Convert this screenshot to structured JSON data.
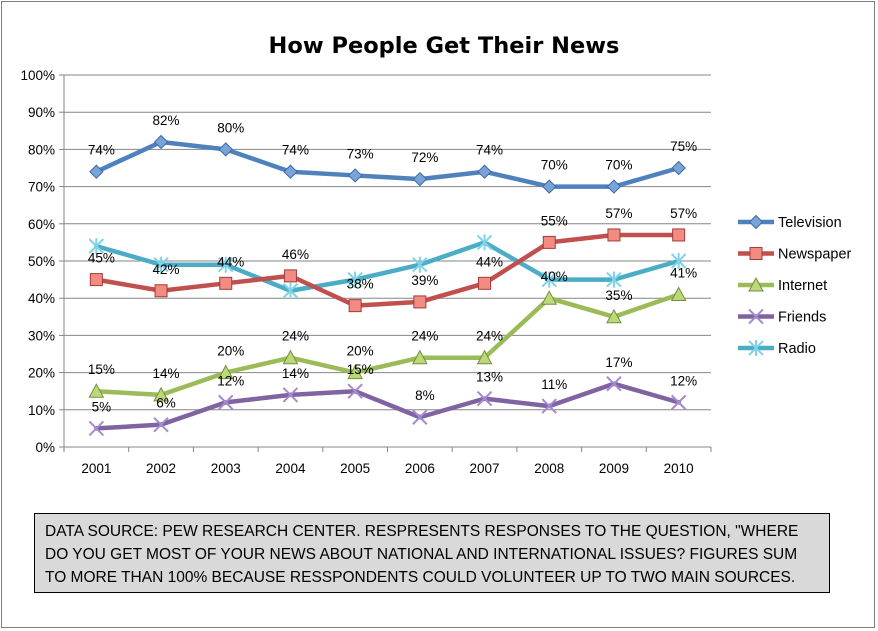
{
  "chart_data": {
    "type": "line",
    "title": "How People Get Their News",
    "categories": [
      "2001",
      "2002",
      "2003",
      "2004",
      "2005",
      "2006",
      "2007",
      "2008",
      "2009",
      "2010"
    ],
    "ylim": [
      0,
      100
    ],
    "y_ticks": [
      "0%",
      "10%",
      "20%",
      "30%",
      "40%",
      "50%",
      "60%",
      "70%",
      "80%",
      "90%",
      "100%"
    ],
    "grid": "horizontal",
    "legend_position": "right",
    "series": [
      {
        "name": "Television",
        "color": "#4f81bd",
        "marker": "diamond",
        "values": [
          74,
          82,
          80,
          74,
          73,
          72,
          74,
          70,
          70,
          75
        ],
        "labels": [
          "74%",
          "82%",
          "80%",
          "74%",
          "73%",
          "72%",
          "74%",
          "70%",
          "70%",
          "75%"
        ]
      },
      {
        "name": "Newspaper",
        "color": "#c0504d",
        "marker": "square",
        "values": [
          45,
          42,
          44,
          46,
          38,
          39,
          44,
          55,
          57,
          57
        ],
        "labels": [
          "45%",
          "42%",
          "44%",
          "46%",
          "38%",
          "39%",
          "44%",
          "55%",
          "57%",
          "57%"
        ]
      },
      {
        "name": "Internet",
        "color": "#9bbb59",
        "marker": "triangle",
        "values": [
          15,
          14,
          20,
          24,
          20,
          24,
          24,
          40,
          35,
          41
        ],
        "labels": [
          "15%",
          "14%",
          "20%",
          "24%",
          "20%",
          "24%",
          "24%",
          "40%",
          "35%",
          "41%"
        ]
      },
      {
        "name": "Friends",
        "color": "#8064a2",
        "marker": "x",
        "values": [
          5,
          6,
          12,
          14,
          15,
          8,
          13,
          11,
          17,
          12
        ],
        "labels": [
          "5%",
          "6%",
          "12%",
          "14%",
          "15%",
          "8%",
          "13%",
          "11%",
          "17%",
          "12%"
        ]
      },
      {
        "name": "Radio",
        "color": "#4bacc6",
        "marker": "star",
        "values": [
          54,
          49,
          49,
          42,
          45,
          49,
          55,
          45,
          45,
          50
        ],
        "labels": []
      }
    ]
  },
  "source_note": "DATA SOURCE: PEW RESEARCH CENTER. RESPRESENTS RESPONSES TO THE QUESTION, \"WHERE DO YOU GET MOST OF YOUR NEWS ABOUT NATIONAL AND INTERNATIONAL ISSUES? FIGURES SUM TO MORE THAN 100% BECAUSE RESSPONDENTS COULD VOLUNTEER UP TO TWO MAIN SOURCES."
}
